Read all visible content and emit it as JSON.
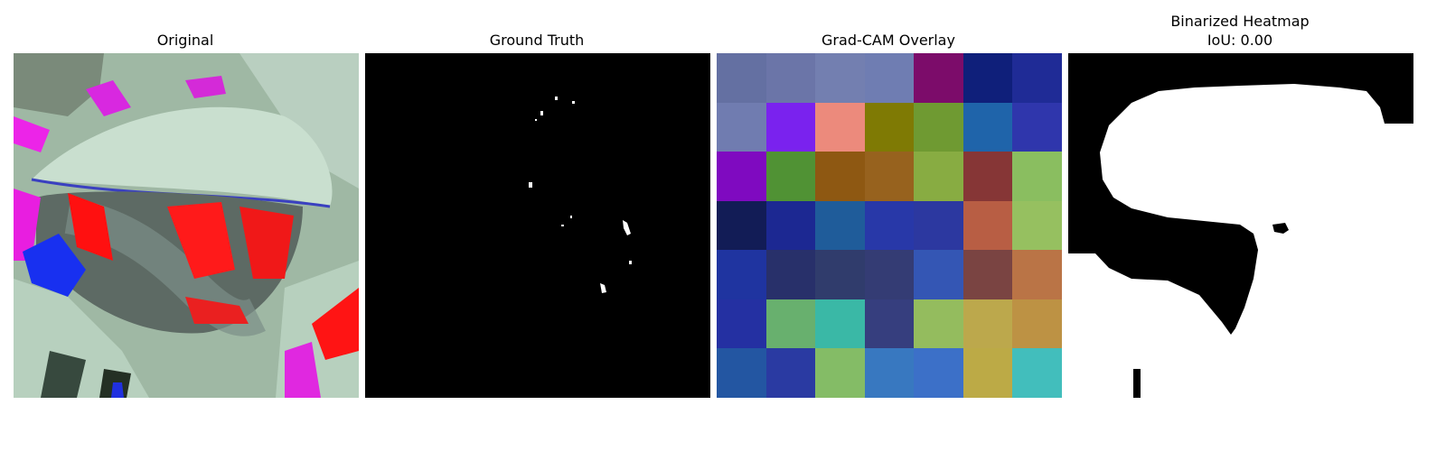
{
  "panels": {
    "original": {
      "title": "Original"
    },
    "ground_truth": {
      "title": "Ground Truth"
    },
    "gradcam": {
      "title": "Grad-CAM Overlay",
      "grid": [
        [
          "#6470a2",
          "#6b75a8",
          "#737fb0",
          "#6f7db2",
          "#7c0c6a",
          "#0f1f7a",
          "#1f2b96"
        ],
        [
          "#707cb0",
          "#7a22ee",
          "#ec8a7c",
          "#7f7a04",
          "#6f9a32",
          "#1f64aa",
          "#2f36ac"
        ],
        [
          "#7f0ac0",
          "#509234",
          "#8e5812",
          "#97621e",
          "#88ac42",
          "#863636",
          "#8abe60"
        ],
        [
          "#121c56",
          "#1c2892",
          "#1f5c9a",
          "#2838a8",
          "#2c38a0",
          "#b85e44",
          "#96c060"
        ],
        [
          "#1f34a0",
          "#28306a",
          "#303c6c",
          "#343c74",
          "#3456b4",
          "#7a4442",
          "#ba7446"
        ],
        [
          "#2430a2",
          "#68b06e",
          "#3ab8a6",
          "#363e7e",
          "#94bc5e",
          "#bca84c",
          "#bd9244"
        ],
        [
          "#2356a2",
          "#2a3aa2",
          "#84bc66",
          "#3878c0",
          "#3c70c8",
          "#bcaa46",
          "#42bebc"
        ]
      ]
    },
    "binarized": {
      "title": "Binarized Heatmap",
      "subtitle": "IoU: 0.00"
    }
  }
}
